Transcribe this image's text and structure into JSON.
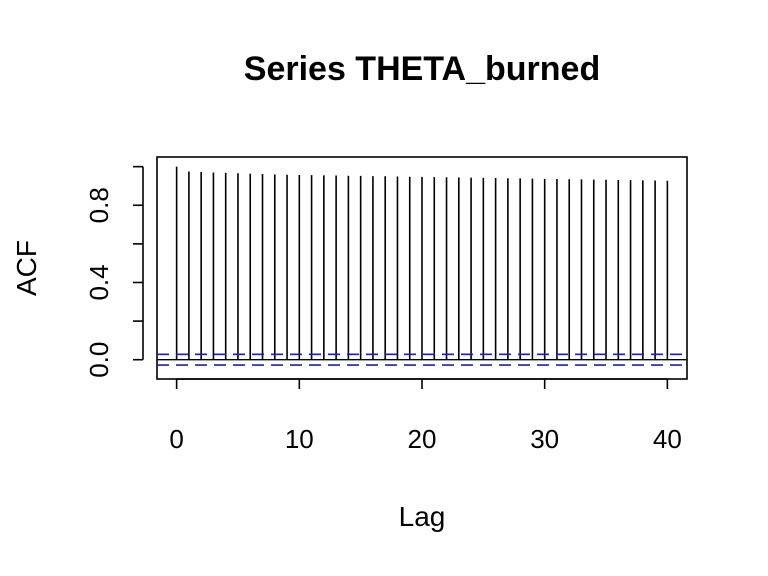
{
  "chart_data": {
    "type": "bar",
    "title": "Series  THETA_burned",
    "xlabel": "Lag",
    "ylabel": "ACF",
    "x_ticks": [
      "0",
      "10",
      "20",
      "30",
      "40"
    ],
    "y_ticks": [
      "0.0",
      "0.4",
      "0.8"
    ],
    "xlim": [
      -1.6,
      41.6
    ],
    "ylim": [
      -0.1,
      1.05
    ],
    "grid": false,
    "lags": [
      0,
      1,
      2,
      3,
      4,
      5,
      6,
      7,
      8,
      9,
      10,
      11,
      12,
      13,
      14,
      15,
      16,
      17,
      18,
      19,
      20,
      21,
      22,
      23,
      24,
      25,
      26,
      27,
      28,
      29,
      30,
      31,
      32,
      33,
      34,
      35,
      36,
      37,
      38,
      39,
      40
    ],
    "values": [
      1.0,
      0.975,
      0.972,
      0.97,
      0.968,
      0.966,
      0.964,
      0.962,
      0.96,
      0.958,
      0.957,
      0.956,
      0.955,
      0.954,
      0.953,
      0.952,
      0.951,
      0.95,
      0.949,
      0.948,
      0.947,
      0.946,
      0.945,
      0.944,
      0.943,
      0.942,
      0.941,
      0.94,
      0.939,
      0.938,
      0.937,
      0.936,
      0.935,
      0.934,
      0.933,
      0.932,
      0.931,
      0.93,
      0.929,
      0.928,
      0.927
    ],
    "confidence_bound": 0.028,
    "bound_color": "#1f1fbf",
    "line_color": "#000000"
  }
}
